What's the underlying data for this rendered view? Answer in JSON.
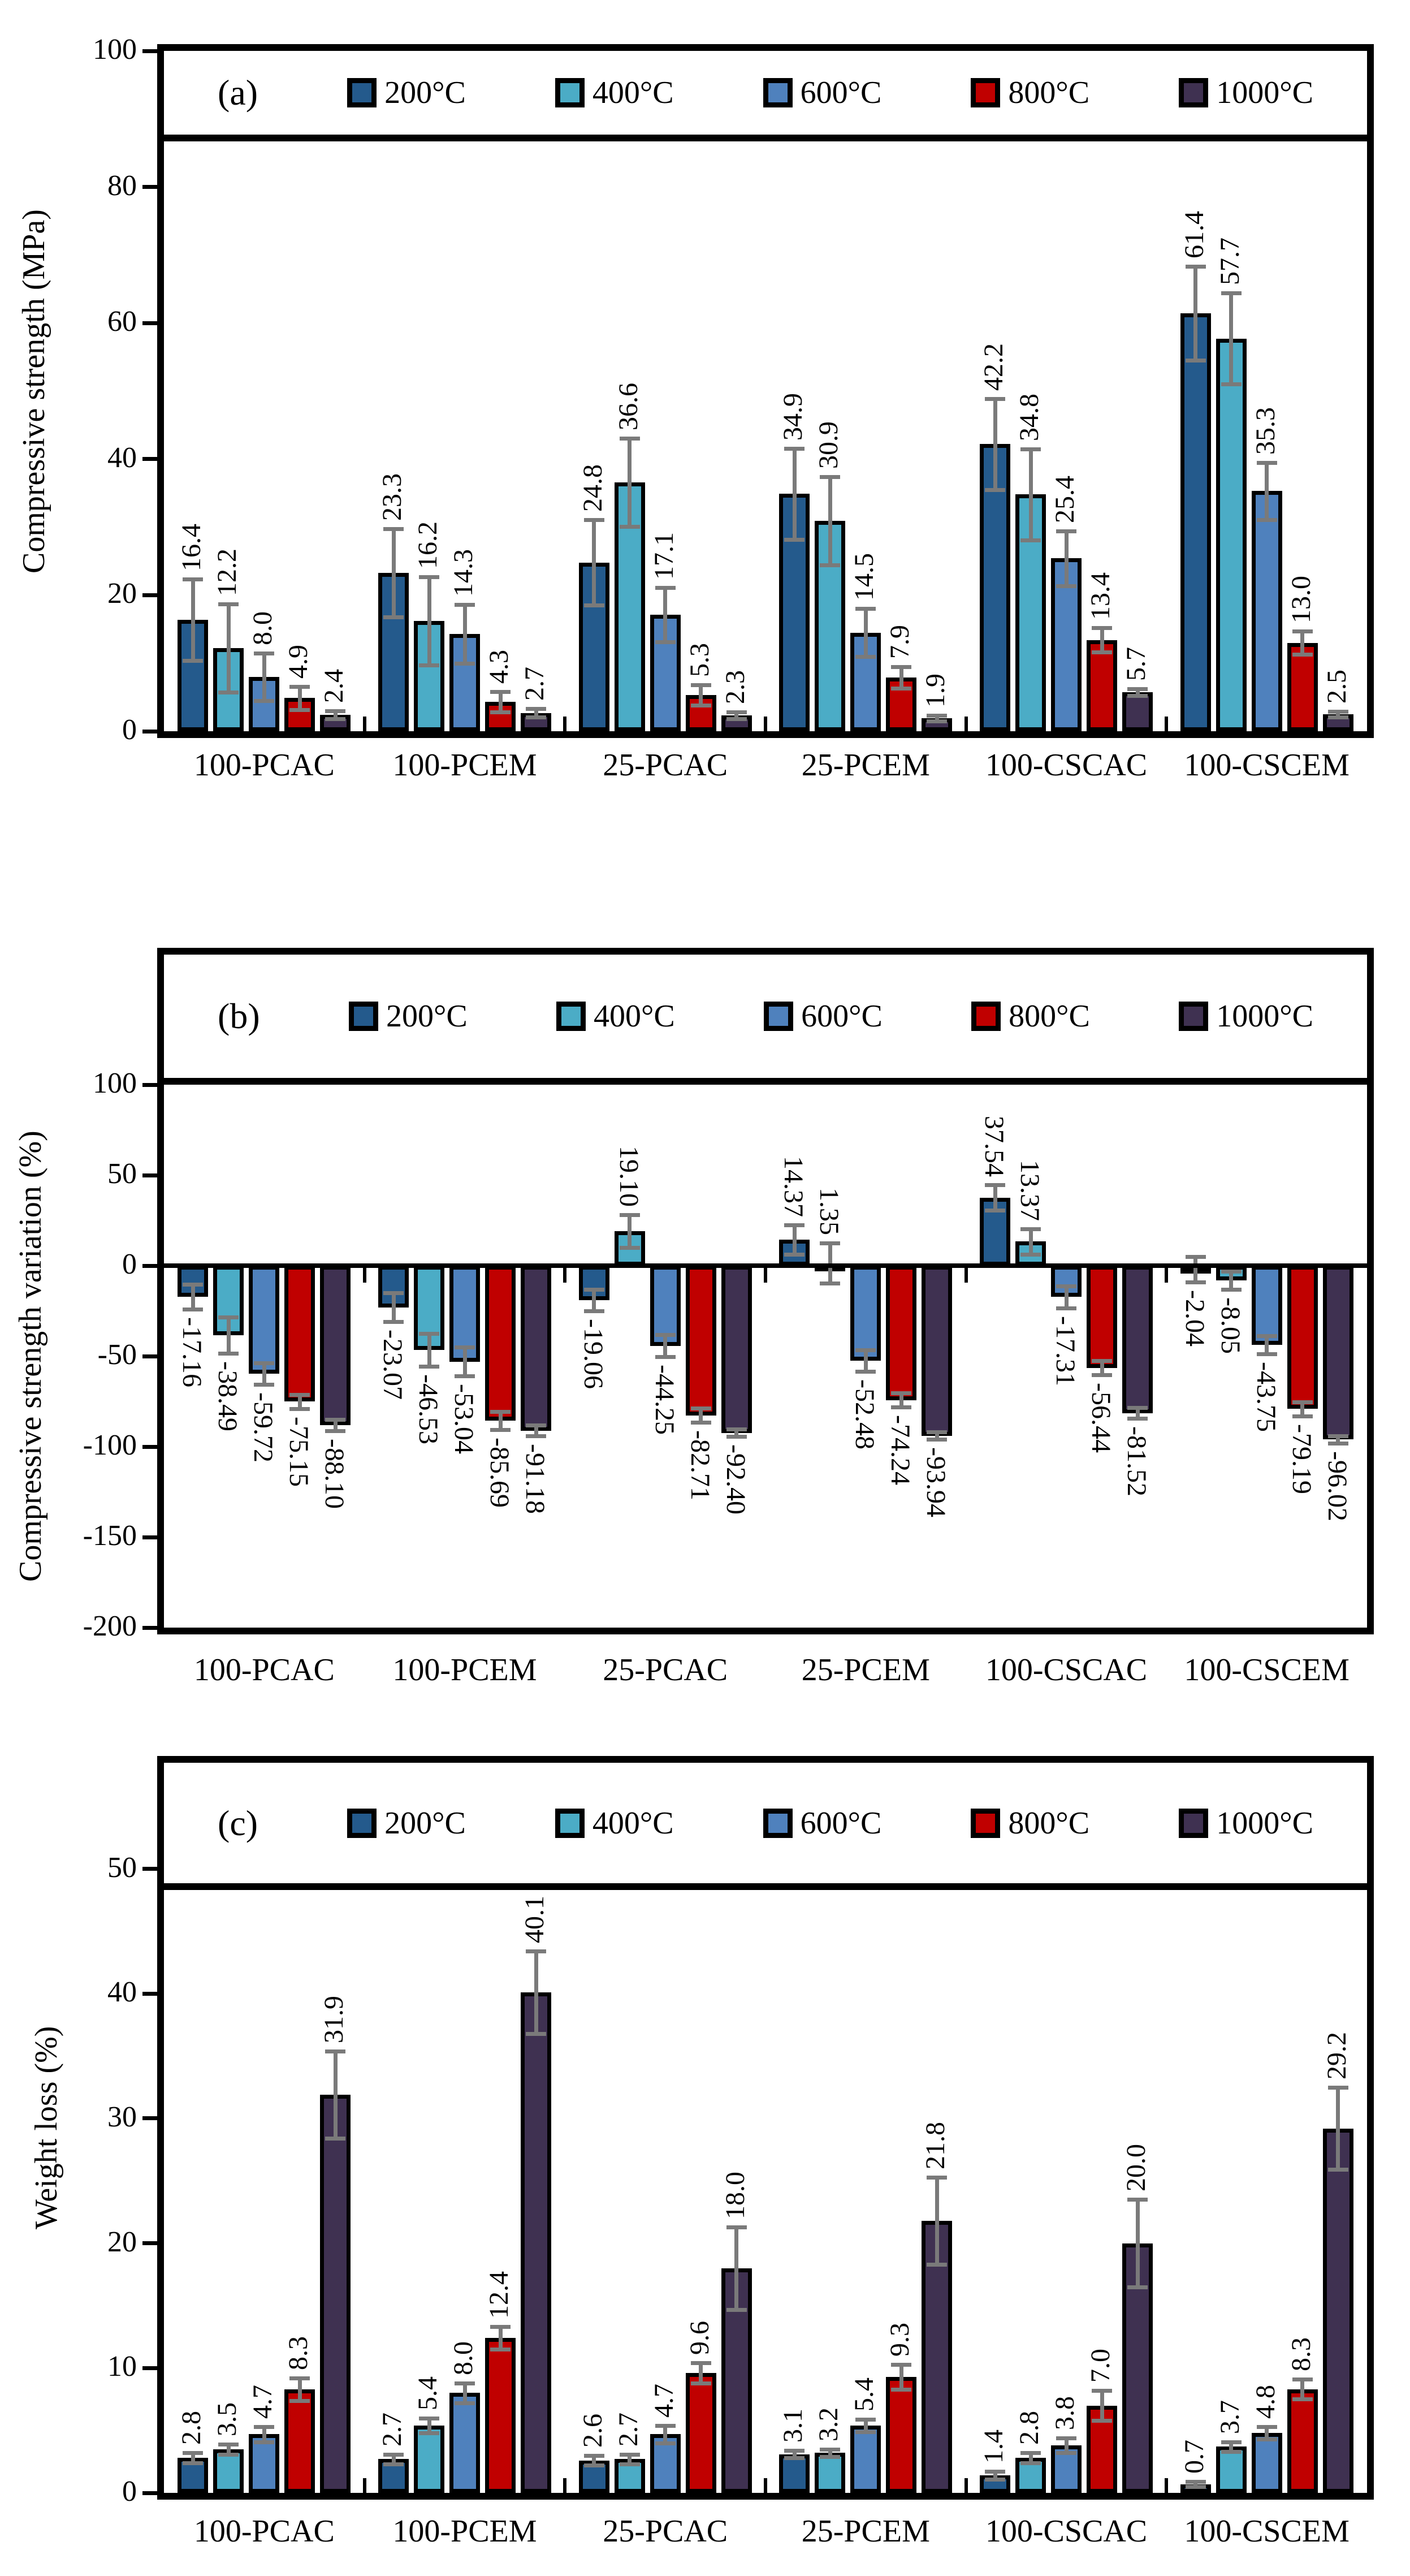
{
  "chart_data": [
    {
      "id": "a",
      "type": "bar",
      "panel_label": "(a)",
      "ylabel": "Compressive strength (MPa)",
      "xlabel": "",
      "ylim": [
        0,
        100
      ],
      "yticks": [
        0,
        20,
        40,
        60,
        80,
        100
      ],
      "grid": false,
      "legend_position": "top-inside",
      "error_bars_shown": true,
      "label_rotation": "up",
      "categories": [
        "100-PCAC",
        "100-PCEM",
        "25-PCAC",
        "25-PCEM",
        "100-CSCAC",
        "100-CSCEM"
      ],
      "series": [
        {
          "name": "200°C",
          "color": "#245A8C",
          "values": [
            16.4,
            23.3,
            24.8,
            34.9,
            42.2,
            61.4
          ],
          "labels": [
            "16.4",
            "23.3",
            "24.8",
            "34.9",
            "42.2",
            "61.4"
          ],
          "errors": [
            6.0,
            6.5,
            6.3,
            6.7,
            6.7,
            6.9
          ]
        },
        {
          "name": "400°C",
          "color": "#4BACC6",
          "values": [
            12.2,
            16.2,
            36.6,
            30.9,
            34.8,
            57.7
          ],
          "labels": [
            "12.2",
            "16.2",
            "36.6",
            "30.9",
            "34.8",
            "57.7"
          ],
          "errors": [
            6.5,
            6.5,
            6.5,
            6.5,
            6.7,
            6.7
          ]
        },
        {
          "name": "600°C",
          "color": "#4F81BD",
          "values": [
            8.0,
            14.3,
            17.1,
            14.5,
            25.4,
            35.3
          ],
          "labels": [
            "8.0",
            "14.3",
            "17.1",
            "14.5",
            "25.4",
            "35.3"
          ],
          "errors": [
            3.5,
            4.3,
            4.0,
            3.5,
            4.0,
            4.2
          ]
        },
        {
          "name": "800°C",
          "color": "#C00000",
          "values": [
            4.9,
            4.3,
            5.3,
            7.9,
            13.4,
            13.0
          ],
          "labels": [
            "4.9",
            "4.3",
            "5.3",
            "7.9",
            "13.4",
            "13.0"
          ],
          "errors": [
            1.7,
            1.5,
            1.5,
            1.6,
            1.8,
            1.7
          ]
        },
        {
          "name": "1000°C",
          "color": "#3F3151",
          "values": [
            2.4,
            2.7,
            2.3,
            1.9,
            5.7,
            2.5
          ],
          "labels": [
            "2.4",
            "2.7",
            "2.3",
            "1.9",
            "5.7",
            "2.5"
          ],
          "errors": [
            0.6,
            0.6,
            0.5,
            0.4,
            0.5,
            0.4
          ]
        }
      ]
    },
    {
      "id": "b",
      "type": "bar",
      "panel_label": "(b)",
      "ylabel": "Compressive strength variation  (%)",
      "xlabel": "",
      "ylim": [
        -200,
        100
      ],
      "yticks": [
        100,
        50,
        0,
        -50,
        -100,
        -150,
        -200
      ],
      "grid": false,
      "legend_position": "top-outside",
      "error_bars_shown": true,
      "label_rotation": "down",
      "categories": [
        "100-PCAC",
        "100-PCEM",
        "25-PCAC",
        "25-PCEM",
        "100-CSCAC",
        "100-CSCEM"
      ],
      "series": [
        {
          "name": "200°C",
          "color": "#245A8C",
          "values": [
            -17.16,
            -23.07,
            -19.06,
            14.37,
            37.54,
            -2.04
          ],
          "labels": [
            "-17.16",
            "-23.07",
            "-19.06",
            "14.37",
            "37.54",
            "-2.04"
          ],
          "errors": [
            7,
            8,
            6,
            8,
            7,
            7
          ]
        },
        {
          "name": "400°C",
          "color": "#4BACC6",
          "values": [
            -38.49,
            -46.53,
            19.1,
            1.35,
            13.37,
            -8.05
          ],
          "labels": [
            "-38.49",
            "-46.53",
            "19.10",
            "1.35",
            "13.37",
            "-8.05"
          ],
          "errors": [
            10,
            9,
            9,
            11,
            7,
            5
          ]
        },
        {
          "name": "600°C",
          "color": "#4F81BD",
          "values": [
            -59.72,
            -53.04,
            -44.25,
            -52.48,
            -17.31,
            -43.75
          ],
          "labels": [
            "-59.72",
            "-53.04",
            "-44.25",
            "-52.48",
            "-17.31",
            "-43.75"
          ],
          "errors": [
            6,
            8,
            6,
            6,
            6,
            5
          ]
        },
        {
          "name": "800°C",
          "color": "#C00000",
          "values": [
            -75.15,
            -85.69,
            -82.71,
            -74.24,
            -56.44,
            -79.19
          ],
          "labels": [
            "-75.15",
            "-85.69",
            "-82.71",
            "-74.24",
            "-56.44",
            "-79.19"
          ],
          "errors": [
            4,
            5,
            4,
            4,
            4,
            4
          ]
        },
        {
          "name": "1000°C",
          "color": "#3F3151",
          "values": [
            -88.1,
            -91.18,
            -92.4,
            -93.94,
            -81.52,
            -96.02
          ],
          "labels": [
            "-88.10",
            "-91.18",
            "-92.40",
            "-93.94",
            "-81.52",
            "-96.02"
          ],
          "errors": [
            3,
            3,
            2,
            2,
            3,
            2
          ]
        }
      ]
    },
    {
      "id": "c",
      "type": "bar",
      "panel_label": "(c)",
      "ylabel": "Weight loss (%)",
      "xlabel": "",
      "ylim": [
        0,
        50
      ],
      "yticks": [
        0,
        10,
        20,
        30,
        40,
        50
      ],
      "grid": false,
      "legend_position": "top-inside",
      "error_bars_shown": true,
      "label_rotation": "up",
      "categories": [
        "100-PCAC",
        "100-PCEM",
        "25-PCAC",
        "25-PCEM",
        "100-CSCAC",
        "100-CSCEM"
      ],
      "series": [
        {
          "name": "200°C",
          "color": "#245A8C",
          "values": [
            2.8,
            2.7,
            2.6,
            3.1,
            1.4,
            0.7
          ],
          "labels": [
            "2.8",
            "2.7",
            "2.6",
            "3.1",
            "1.4",
            "0.7"
          ],
          "errors": [
            0.4,
            0.4,
            0.4,
            0.3,
            0.3,
            0.2
          ]
        },
        {
          "name": "400°C",
          "color": "#4BACC6",
          "values": [
            3.5,
            5.4,
            2.7,
            3.2,
            2.8,
            3.7
          ],
          "labels": [
            "3.5",
            "5.4",
            "2.7",
            "3.2",
            "2.8",
            "3.7"
          ],
          "errors": [
            0.4,
            0.6,
            0.4,
            0.3,
            0.4,
            0.4
          ]
        },
        {
          "name": "600°C",
          "color": "#4F81BD",
          "values": [
            4.7,
            8.0,
            4.7,
            5.4,
            3.8,
            4.8
          ],
          "labels": [
            "4.7",
            "8.0",
            "4.7",
            "5.4",
            "3.8",
            "4.8"
          ],
          "errors": [
            0.6,
            0.8,
            0.7,
            0.5,
            0.6,
            0.5
          ]
        },
        {
          "name": "800°C",
          "color": "#C00000",
          "values": [
            8.3,
            12.4,
            9.6,
            9.3,
            7.0,
            8.3
          ],
          "labels": [
            "8.3",
            "12.4",
            "9.6",
            "9.3",
            "7.0",
            "8.3"
          ],
          "errors": [
            0.9,
            0.9,
            0.8,
            1.0,
            1.2,
            0.8
          ]
        },
        {
          "name": "1000°C",
          "color": "#3F3151",
          "values": [
            31.9,
            40.1,
            18.0,
            21.8,
            20.0,
            29.2
          ],
          "labels": [
            "31.9",
            "40.1",
            "18.0",
            "21.8",
            "20.0",
            "29.2"
          ],
          "errors": [
            3.5,
            3.3,
            3.3,
            3.5,
            3.5,
            3.3
          ]
        }
      ]
    }
  ],
  "styles": {
    "background": "#ffffff",
    "frame_color": "#000000",
    "text_color": "#000000",
    "error_bar_color": "#7a7a7a",
    "series_colors": {
      "200°C": "#245A8C",
      "400°C": "#4BACC6",
      "600°C": "#4F81BD",
      "800°C": "#C00000",
      "1000°C": "#3F3151"
    }
  }
}
